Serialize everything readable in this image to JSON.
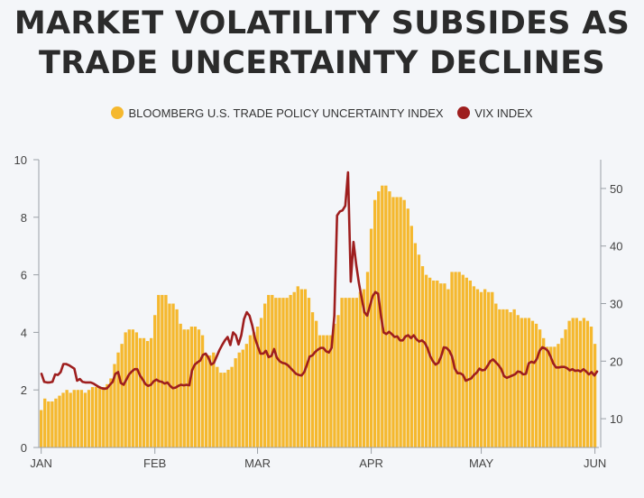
{
  "title_line1": "MARKET VOLATILITY SUBSIDES AS",
  "title_line2": "TRADE UNCERTAINTY DECLINES",
  "colors": {
    "bars": "#f5b82e",
    "line": "#9e1e1e",
    "background": "#f4f6f9"
  },
  "chart_data": {
    "type": "bar",
    "title": "MARKET VOLATILITY SUBSIDES AS TRADE UNCERTAINTY DECLINES",
    "legend": {
      "placement": "top-center"
    },
    "grid": false,
    "x": {
      "tick_labels": [
        "JAN",
        "FEB",
        "MAR",
        "APR",
        "MAY",
        "JUN"
      ],
      "tick_indices": [
        0,
        31,
        59,
        90,
        120,
        151
      ]
    },
    "y_left": {
      "ylim": [
        0,
        10
      ],
      "ticks": [
        0,
        2,
        4,
        6,
        8,
        10
      ]
    },
    "y_right": {
      "ylim": [
        5,
        55
      ],
      "ticks": [
        10,
        20,
        30,
        40,
        50
      ]
    },
    "series": [
      {
        "name": "BLOOMBERG U.S. TRADE POLICY UNCERTAINTY INDEX",
        "type": "bar",
        "axis": "left",
        "values": [
          1.3,
          1.7,
          1.6,
          1.6,
          1.7,
          1.8,
          1.9,
          2.0,
          1.9,
          2.0,
          2.0,
          2.0,
          1.9,
          2.0,
          2.1,
          2.1,
          2.1,
          2.1,
          2.2,
          2.4,
          2.9,
          3.3,
          3.6,
          4.0,
          4.1,
          4.1,
          4.0,
          3.8,
          3.8,
          3.7,
          3.8,
          4.6,
          5.3,
          5.3,
          5.3,
          5.0,
          5.0,
          4.8,
          4.3,
          4.1,
          4.1,
          4.2,
          4.2,
          4.1,
          3.9,
          3.2,
          3.2,
          3.3,
          2.8,
          2.6,
          2.6,
          2.7,
          2.8,
          3.1,
          3.3,
          3.4,
          3.6,
          3.9,
          4.0,
          4.2,
          4.5,
          5.0,
          5.3,
          5.3,
          5.2,
          5.2,
          5.2,
          5.2,
          5.3,
          5.4,
          5.6,
          5.5,
          5.5,
          5.2,
          4.7,
          4.4,
          3.9,
          3.9,
          3.9,
          3.9,
          4.3,
          4.6,
          5.2,
          5.2,
          5.2,
          5.2,
          5.2,
          5.4,
          5.5,
          6.1,
          7.6,
          8.6,
          8.9,
          9.1,
          9.1,
          8.9,
          8.7,
          8.7,
          8.7,
          8.6,
          8.3,
          7.7,
          7.1,
          6.7,
          6.3,
          6.0,
          5.9,
          5.8,
          5.8,
          5.7,
          5.7,
          5.5,
          6.1,
          6.1,
          6.1,
          6.0,
          5.9,
          5.8,
          5.6,
          5.5,
          5.4,
          5.5,
          5.4,
          5.4,
          5.0,
          4.8,
          4.8,
          4.8,
          4.7,
          4.8,
          4.6,
          4.5,
          4.5,
          4.5,
          4.4,
          4.3,
          4.1,
          3.8,
          3.5,
          3.5,
          3.5,
          3.6,
          3.8,
          4.1,
          4.4,
          4.5,
          4.5,
          4.4,
          4.5,
          4.4,
          4.2,
          3.6
        ]
      },
      {
        "name": "VIX INDEX",
        "type": "line",
        "axis": "right",
        "values": [
          17.8,
          16.4,
          16.3,
          16.3,
          16.4,
          17.7,
          17.6,
          18.1,
          19.5,
          19.5,
          19.3,
          19.0,
          18.7,
          16.6,
          16.9,
          16.4,
          16.3,
          16.3,
          16.3,
          16.1,
          15.8,
          15.5,
          15.3,
          15.2,
          15.3,
          15.9,
          16.4,
          17.8,
          18.1,
          16.2,
          15.9,
          16.8,
          17.7,
          18.2,
          18.6,
          18.6,
          17.5,
          16.8,
          16.0,
          15.7,
          15.9,
          16.5,
          16.8,
          16.5,
          16.4,
          16.1,
          16.3,
          15.7,
          15.3,
          15.4,
          15.7,
          15.9,
          15.8,
          15.9,
          15.8,
          18.4,
          19.4,
          19.8,
          20.1,
          21.1,
          21.3,
          20.6,
          19.4,
          19.7,
          20.8,
          21.9,
          22.8,
          23.6,
          24.2,
          22.8,
          25.0,
          24.5,
          22.9,
          24.5,
          27.3,
          28.5,
          27.9,
          26.2,
          24.0,
          22.6,
          21.3,
          21.3,
          21.8,
          20.7,
          20.9,
          22.1,
          20.6,
          20.0,
          19.7,
          19.6,
          19.3,
          18.8,
          18.3,
          17.8,
          17.6,
          17.5,
          18.1,
          19.4,
          20.8,
          21.0,
          21.6,
          22.0,
          22.3,
          22.3,
          21.7,
          21.5,
          22.3,
          27.9,
          45.3,
          46.0,
          46.2,
          47.0,
          52.8,
          33.8,
          40.7,
          36.7,
          33.5,
          30.9,
          28.5,
          27.9,
          29.6,
          31.3,
          32.0,
          31.7,
          28.0,
          25.0,
          24.7,
          25.1,
          24.7,
          24.2,
          24.3,
          23.6,
          23.6,
          24.3,
          24.5,
          24.0,
          24.5,
          23.8,
          23.4,
          23.6,
          23.2,
          22.3,
          20.9,
          20.0,
          19.4,
          19.7,
          20.8,
          22.4,
          22.3,
          21.8,
          20.8,
          18.7,
          17.9,
          17.9,
          17.6,
          16.6,
          16.8,
          17.0,
          17.6,
          18.0,
          18.7,
          18.4,
          18.5,
          19.2,
          20.0,
          20.3,
          19.8,
          19.3,
          18.6,
          17.4,
          17.1,
          17.3,
          17.5,
          17.7,
          18.2,
          18.1,
          17.7,
          17.8,
          19.6,
          19.9,
          19.7,
          20.4,
          21.8,
          22.4,
          22.2,
          21.8,
          20.8,
          19.6,
          18.9,
          18.9,
          19.0,
          19.0,
          18.8,
          18.4,
          18.6,
          18.3,
          18.4,
          18.2,
          18.6,
          18.2,
          17.7,
          18.1,
          17.5,
          18.2
        ]
      }
    ]
  }
}
